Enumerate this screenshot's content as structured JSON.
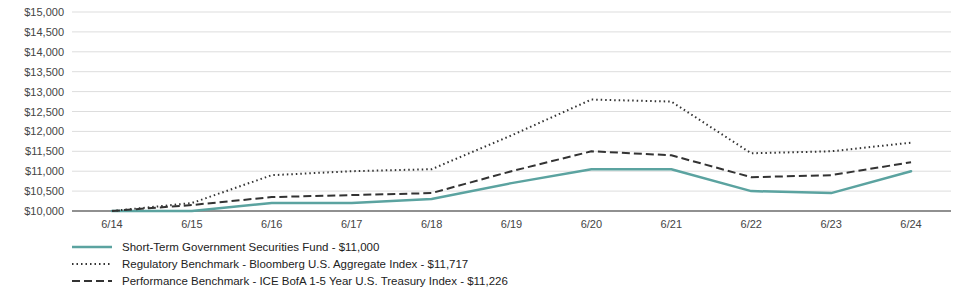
{
  "chart_data": {
    "type": "line",
    "categories": [
      "6/14",
      "6/15",
      "6/16",
      "6/17",
      "6/18",
      "6/19",
      "6/20",
      "6/21",
      "6/22",
      "6/23",
      "6/24"
    ],
    "series": [
      {
        "name": "Short-Term Government Securities Fund - $11,000",
        "color": "#5ba3a0",
        "line_style": "solid",
        "values": [
          10000,
          10000,
          10200,
          10200,
          10300,
          10700,
          11050,
          11050,
          10500,
          10450,
          11000
        ]
      },
      {
        "name": "Regulatory Benchmark - Bloomberg U.S. Aggregate Index - $11,717",
        "color": "#333333",
        "line_style": "dotted",
        "values": [
          10000,
          10200,
          10900,
          11000,
          11050,
          11900,
          12800,
          12750,
          11450,
          11500,
          11717
        ]
      },
      {
        "name": "Performance Benchmark - ICE BofA 1-5 Year U.S. Treasury Index - $11,226",
        "color": "#333333",
        "line_style": "dashed",
        "values": [
          10000,
          10150,
          10350,
          10400,
          10450,
          11000,
          11500,
          11400,
          10850,
          10900,
          11226
        ]
      }
    ],
    "ylim": [
      10000,
      15000
    ],
    "yticks": [
      {
        "value": 10000,
        "label": "$10,000"
      },
      {
        "value": 10500,
        "label": "$10,500"
      },
      {
        "value": 11000,
        "label": "$11,000"
      },
      {
        "value": 11500,
        "label": "$11,500"
      },
      {
        "value": 12000,
        "label": "$12,000"
      },
      {
        "value": 12500,
        "label": "$12,500"
      },
      {
        "value": 13000,
        "label": "$13,000"
      },
      {
        "value": 13500,
        "label": "$13,500"
      },
      {
        "value": 14000,
        "label": "$14,000"
      },
      {
        "value": 14500,
        "label": "$14,500"
      },
      {
        "value": 15000,
        "label": "$15,000"
      }
    ],
    "grid": true,
    "legend": "bottom"
  }
}
